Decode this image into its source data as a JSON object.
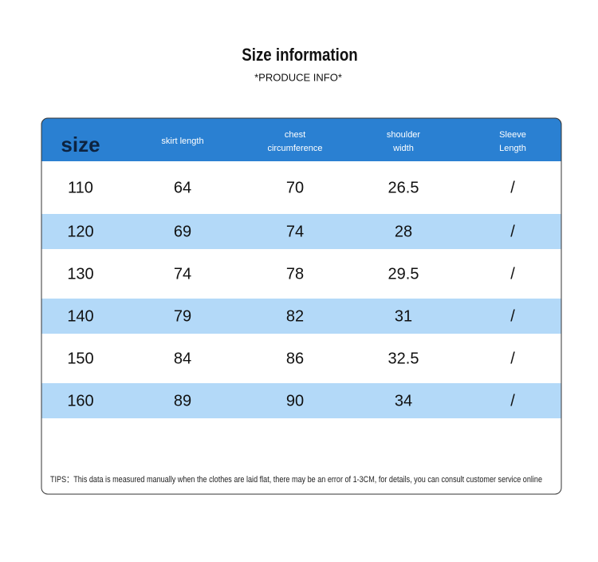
{
  "header": {
    "title": "Size information",
    "subtitle": "*PRODUCE INFO*"
  },
  "table": {
    "columns": [
      [
        "size"
      ],
      [
        "skirt length"
      ],
      [
        "chest",
        "circumference"
      ],
      [
        "shoulder",
        "width"
      ],
      [
        "Sleeve",
        "Length"
      ]
    ],
    "rows": [
      [
        "110",
        "64",
        "70",
        "26.5",
        "/"
      ],
      [
        "120",
        "69",
        "74",
        "28",
        "/"
      ],
      [
        "130",
        "74",
        "78",
        "29.5",
        "/"
      ],
      [
        "140",
        "79",
        "82",
        "31",
        "/"
      ],
      [
        "150",
        "84",
        "86",
        "32.5",
        "/"
      ],
      [
        "160",
        "89",
        "90",
        "34",
        "/"
      ]
    ]
  },
  "tips": "TIPS：This data is measured manually when the clothes are laid flat, there may be an error of 1-3CM, for details, you can consult customer service online"
}
